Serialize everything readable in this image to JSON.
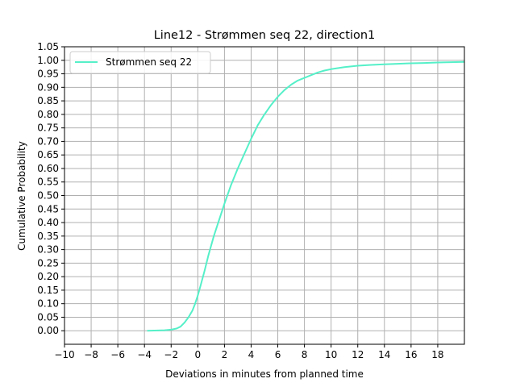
{
  "chart_data": {
    "type": "line",
    "title": "Line12 - Strømmen seq 22, direction1",
    "xlabel": "Deviations in minutes from planned time",
    "ylabel": "Cumulative Probability",
    "xlim": [
      -10,
      20
    ],
    "ylim": [
      -0.05,
      1.05
    ],
    "xticks": [
      -10,
      -8,
      -6,
      -4,
      -2,
      0,
      2,
      4,
      6,
      8,
      10,
      12,
      14,
      16,
      18
    ],
    "xtick_labels": [
      "−10",
      "−8",
      "−6",
      "−4",
      "−2",
      "0",
      "2",
      "4",
      "6",
      "8",
      "10",
      "12",
      "14",
      "16",
      "18"
    ],
    "yticks": [
      0.0,
      0.05,
      0.1,
      0.15,
      0.2,
      0.25,
      0.3,
      0.35,
      0.4,
      0.45,
      0.5,
      0.55,
      0.6,
      0.65,
      0.7,
      0.75,
      0.8,
      0.85,
      0.9,
      0.95,
      1.0,
      1.05
    ],
    "ytick_labels": [
      "0.00",
      "0.05",
      "0.10",
      "0.15",
      "0.20",
      "0.25",
      "0.30",
      "0.35",
      "0.40",
      "0.45",
      "0.50",
      "0.55",
      "0.60",
      "0.65",
      "0.70",
      "0.75",
      "0.80",
      "0.85",
      "0.90",
      "0.95",
      "1.00",
      "1.05"
    ],
    "grid": true,
    "legend_position": "top-left",
    "series": [
      {
        "name": "Strømmen seq 22",
        "color": "#55f0c8",
        "x": [
          -3.8,
          -3.0,
          -2.5,
          -2.0,
          -1.6,
          -1.3,
          -1.0,
          -0.7,
          -0.4,
          -0.2,
          0.0,
          0.2,
          0.5,
          0.8,
          1.2,
          1.6,
          2.0,
          2.5,
          3.0,
          3.5,
          4.0,
          4.5,
          5.0,
          5.5,
          6.0,
          6.5,
          7.0,
          7.5,
          8.0,
          8.5,
          9.0,
          9.5,
          10.0,
          11.0,
          12.0,
          13.0,
          14.0,
          15.0,
          16.0,
          17.0,
          18.0,
          19.0,
          20.0
        ],
        "y": [
          0.0,
          0.001,
          0.002,
          0.004,
          0.008,
          0.015,
          0.03,
          0.05,
          0.075,
          0.1,
          0.13,
          0.165,
          0.22,
          0.28,
          0.35,
          0.41,
          0.47,
          0.54,
          0.6,
          0.655,
          0.71,
          0.76,
          0.8,
          0.835,
          0.865,
          0.89,
          0.91,
          0.925,
          0.935,
          0.945,
          0.955,
          0.962,
          0.967,
          0.975,
          0.98,
          0.983,
          0.985,
          0.987,
          0.989,
          0.99,
          0.992,
          0.993,
          0.994
        ]
      }
    ]
  }
}
